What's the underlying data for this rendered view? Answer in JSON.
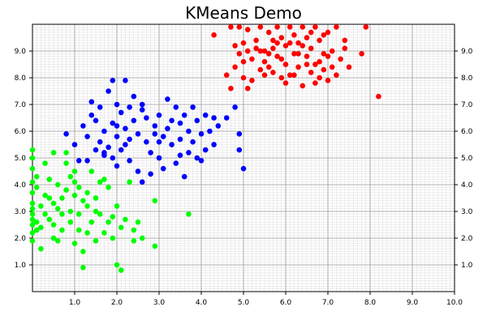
{
  "chart_data": {
    "type": "scatter",
    "title": "KMeans Demo",
    "xlabel": "",
    "ylabel": "",
    "xlim": [
      0,
      10
    ],
    "ylim": [
      0,
      10
    ],
    "x_ticks": [
      "1.0",
      "2.0",
      "3.0",
      "4.0",
      "5.0",
      "6.0",
      "7.0",
      "8.0",
      "9.0",
      "10.0"
    ],
    "y_ticks": [
      "1.0",
      "2.0",
      "3.0",
      "4.0",
      "5.0",
      "6.0",
      "7.0",
      "8.0",
      "9.0"
    ],
    "grid": true,
    "minor_grid": true,
    "y_ticks_both_sides": true,
    "series": [
      {
        "color": "#ff0000",
        "points": [
          [
            4.3,
            9.6
          ],
          [
            4.6,
            8.1
          ],
          [
            4.7,
            9.9
          ],
          [
            4.8,
            8.4
          ],
          [
            4.9,
            8.9
          ],
          [
            5.0,
            9.3
          ],
          [
            5.0,
            8.0
          ],
          [
            5.1,
            9.8
          ],
          [
            5.1,
            7.6
          ],
          [
            5.2,
            7.9
          ],
          [
            5.2,
            8.7
          ],
          [
            5.3,
            9.1
          ],
          [
            5.4,
            9.9
          ],
          [
            5.4,
            8.3
          ],
          [
            5.5,
            9.0
          ],
          [
            5.5,
            8.6
          ],
          [
            5.6,
            9.7
          ],
          [
            5.6,
            8.9
          ],
          [
            5.7,
            9.4
          ],
          [
            5.7,
            8.2
          ],
          [
            5.8,
            9.9
          ],
          [
            5.8,
            8.8
          ],
          [
            5.9,
            9.5
          ],
          [
            5.9,
            8.0
          ],
          [
            6.0,
            9.2
          ],
          [
            6.0,
            8.5
          ],
          [
            6.1,
            9.9
          ],
          [
            6.1,
            8.1
          ],
          [
            6.2,
            9.6
          ],
          [
            6.2,
            8.9
          ],
          [
            6.3,
            9.3
          ],
          [
            6.3,
            8.4
          ],
          [
            6.4,
            9.9
          ],
          [
            6.4,
            7.7
          ],
          [
            6.5,
            9.5
          ],
          [
            6.5,
            8.8
          ],
          [
            6.6,
            9.1
          ],
          [
            6.6,
            8.2
          ],
          [
            6.7,
            9.9
          ],
          [
            6.7,
            7.8
          ],
          [
            6.8,
            9.4
          ],
          [
            6.8,
            8.6
          ],
          [
            6.9,
            8.9
          ],
          [
            6.9,
            8.3
          ],
          [
            7.0,
            9.7
          ],
          [
            7.0,
            7.9
          ],
          [
            7.1,
            9.0
          ],
          [
            7.1,
            8.4
          ],
          [
            7.2,
            9.9
          ],
          [
            7.3,
            8.7
          ],
          [
            7.4,
            9.1
          ],
          [
            7.5,
            8.4
          ],
          [
            7.9,
            9.9
          ],
          [
            7.8,
            8.9
          ],
          [
            8.2,
            7.3
          ],
          [
            4.9,
            9.9
          ],
          [
            5.3,
            9.4
          ],
          [
            5.6,
            8.4
          ],
          [
            6.2,
            8.1
          ],
          [
            6.8,
            8.0
          ],
          [
            5.9,
            8.7
          ],
          [
            6.4,
            9.2
          ],
          [
            4.7,
            7.6
          ],
          [
            5.4,
            9.0
          ],
          [
            6.6,
            9.7
          ],
          [
            5.0,
            8.6
          ],
          [
            6.1,
            9.3
          ],
          [
            7.2,
            8.1
          ],
          [
            5.7,
            9.1
          ],
          [
            6.0,
            7.8
          ],
          [
            5.1,
            9.0
          ],
          [
            5.8,
            9.3
          ],
          [
            6.5,
            8.5
          ],
          [
            7.0,
            8.8
          ],
          [
            4.8,
            9.2
          ],
          [
            6.9,
            9.6
          ],
          [
            5.5,
            8.1
          ],
          [
            6.3,
            8.9
          ],
          [
            7.4,
            9.4
          ],
          [
            6.7,
            8.5
          ]
        ]
      },
      {
        "color": "#0000ff",
        "points": [
          [
            0.8,
            5.9
          ],
          [
            1.0,
            5.5
          ],
          [
            1.1,
            4.9
          ],
          [
            1.2,
            6.2
          ],
          [
            1.3,
            5.8
          ],
          [
            1.4,
            6.6
          ],
          [
            1.5,
            5.3
          ],
          [
            1.6,
            6.9
          ],
          [
            1.6,
            5.6
          ],
          [
            1.7,
            5.1
          ],
          [
            1.7,
            6.0
          ],
          [
            1.8,
            7.5
          ],
          [
            1.8,
            5.4
          ],
          [
            1.9,
            6.3
          ],
          [
            1.9,
            5.0
          ],
          [
            2.0,
            7.0
          ],
          [
            2.0,
            5.8
          ],
          [
            2.1,
            6.7
          ],
          [
            2.1,
            5.3
          ],
          [
            2.2,
            7.9
          ],
          [
            2.2,
            6.1
          ],
          [
            2.3,
            5.7
          ],
          [
            2.3,
            4.9
          ],
          [
            2.4,
            7.3
          ],
          [
            2.4,
            6.4
          ],
          [
            2.5,
            5.9
          ],
          [
            2.5,
            4.5
          ],
          [
            2.6,
            6.8
          ],
          [
            2.7,
            5.6
          ],
          [
            2.7,
            6.5
          ],
          [
            2.8,
            5.2
          ],
          [
            2.9,
            6.2
          ],
          [
            3.0,
            6.6
          ],
          [
            3.0,
            5.0
          ],
          [
            3.1,
            5.8
          ],
          [
            3.2,
            7.2
          ],
          [
            3.2,
            6.1
          ],
          [
            3.3,
            5.5
          ],
          [
            3.4,
            6.9
          ],
          [
            3.4,
            4.8
          ],
          [
            3.5,
            6.3
          ],
          [
            3.5,
            5.7
          ],
          [
            3.6,
            6.6
          ],
          [
            3.7,
            5.2
          ],
          [
            3.7,
            6.0
          ],
          [
            3.8,
            5.6
          ],
          [
            3.9,
            6.4
          ],
          [
            3.9,
            5.0
          ],
          [
            4.0,
            5.9
          ],
          [
            4.1,
            6.6
          ],
          [
            4.1,
            5.3
          ],
          [
            4.2,
            6.0
          ],
          [
            4.3,
            5.5
          ],
          [
            4.4,
            6.2
          ],
          [
            4.6,
            6.5
          ],
          [
            4.8,
            6.9
          ],
          [
            4.9,
            5.9
          ],
          [
            5.0,
            4.6
          ],
          [
            4.9,
            5.3
          ],
          [
            1.7,
            5.2
          ],
          [
            2.0,
            4.7
          ],
          [
            1.5,
            6.4
          ],
          [
            2.6,
            4.1
          ],
          [
            3.1,
            4.6
          ],
          [
            3.6,
            4.3
          ],
          [
            4.0,
            4.9
          ],
          [
            2.9,
            5.9
          ],
          [
            2.2,
            5.5
          ],
          [
            1.4,
            7.1
          ],
          [
            2.8,
            4.4
          ],
          [
            3.3,
            6.4
          ],
          [
            1.9,
            7.9
          ],
          [
            2.3,
            6.9
          ],
          [
            2.0,
            6.2
          ],
          [
            3.8,
            6.9
          ],
          [
            3.5,
            5.1
          ],
          [
            4.3,
            6.5
          ],
          [
            1.3,
            4.9
          ],
          [
            2.6,
            7.0
          ],
          [
            3.0,
            5.6
          ]
        ]
      },
      {
        "color": "#00ff00",
        "points": [
          [
            0.0,
            5.3
          ],
          [
            0.0,
            5.0
          ],
          [
            0.0,
            4.6
          ],
          [
            0.0,
            4.1
          ],
          [
            0.0,
            3.7
          ],
          [
            0.0,
            3.3
          ],
          [
            0.0,
            3.1
          ],
          [
            0.0,
            2.9
          ],
          [
            0.0,
            2.7
          ],
          [
            0.0,
            2.5
          ],
          [
            0.0,
            2.2
          ],
          [
            0.0,
            1.9
          ],
          [
            0.1,
            3.9
          ],
          [
            0.1,
            2.6
          ],
          [
            0.1,
            2.3
          ],
          [
            0.2,
            3.2
          ],
          [
            0.2,
            1.6
          ],
          [
            0.3,
            2.9
          ],
          [
            0.3,
            3.6
          ],
          [
            0.4,
            2.7
          ],
          [
            0.4,
            4.2
          ],
          [
            0.5,
            3.3
          ],
          [
            0.5,
            2.5
          ],
          [
            0.5,
            5.2
          ],
          [
            0.6,
            3.1
          ],
          [
            0.6,
            4.0
          ],
          [
            0.7,
            3.5
          ],
          [
            0.7,
            2.3
          ],
          [
            0.8,
            5.2
          ],
          [
            0.8,
            3.8
          ],
          [
            0.8,
            4.8
          ],
          [
            0.9,
            3.0
          ],
          [
            0.9,
            2.6
          ],
          [
            1.0,
            1.8
          ],
          [
            1.0,
            3.6
          ],
          [
            1.0,
            4.5
          ],
          [
            1.1,
            2.9
          ],
          [
            1.1,
            2.3
          ],
          [
            1.2,
            1.5
          ],
          [
            1.2,
            3.4
          ],
          [
            1.2,
            0.9
          ],
          [
            1.3,
            2.2
          ],
          [
            1.3,
            3.2
          ],
          [
            1.4,
            4.5
          ],
          [
            1.4,
            2.6
          ],
          [
            1.5,
            1.9
          ],
          [
            1.5,
            3.5
          ],
          [
            1.6,
            2.9
          ],
          [
            1.6,
            4.1
          ],
          [
            1.7,
            2.2
          ],
          [
            1.8,
            2.6
          ],
          [
            1.8,
            3.9
          ],
          [
            1.9,
            2.0
          ],
          [
            2.0,
            3.2
          ],
          [
            2.0,
            1.0
          ],
          [
            2.1,
            2.4
          ],
          [
            2.2,
            2.7
          ],
          [
            2.3,
            4.1
          ],
          [
            2.4,
            1.9
          ],
          [
            2.5,
            2.6
          ],
          [
            2.1,
            0.8
          ],
          [
            2.9,
            1.7
          ],
          [
            2.9,
            3.4
          ],
          [
            3.7,
            2.9
          ],
          [
            0.5,
            2.0
          ],
          [
            0.7,
            2.9
          ],
          [
            1.0,
            4.1
          ],
          [
            1.3,
            3.7
          ],
          [
            0.3,
            4.8
          ],
          [
            0.6,
            1.9
          ],
          [
            1.9,
            2.8
          ],
          [
            2.4,
            2.3
          ],
          [
            0.9,
            4.3
          ],
          [
            0.2,
            2.4
          ],
          [
            1.5,
            3.0
          ],
          [
            1.1,
            3.9
          ],
          [
            2.6,
            2.0
          ],
          [
            0.4,
            3.5
          ],
          [
            1.7,
            4.2
          ],
          [
            0.1,
            4.3
          ]
        ]
      }
    ]
  }
}
